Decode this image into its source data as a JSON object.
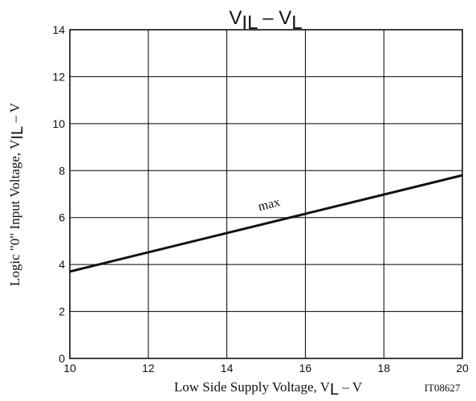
{
  "chart_data": {
    "type": "line",
    "title": {
      "main": "V",
      "sub1": "IL",
      "mid": " – V",
      "sub2": "L"
    },
    "xlabel": {
      "main": "Low Side Supply Voltage, V",
      "sub": "L",
      "tail": " – V"
    },
    "ylabel": {
      "main": "Logic \"0\" Input Voltage, V",
      "sub": "IL",
      "tail": " – V"
    },
    "xlim": [
      10,
      20
    ],
    "ylim": [
      0,
      14
    ],
    "x_ticks": [
      10,
      12,
      14,
      16,
      18,
      20
    ],
    "y_ticks": [
      0,
      2,
      4,
      6,
      8,
      10,
      12,
      14
    ],
    "grid": true,
    "series": [
      {
        "name": "max",
        "x": [
          10,
          20
        ],
        "y": [
          3.7,
          7.8
        ]
      }
    ],
    "annotations": [
      {
        "text": "max",
        "x": 15.1,
        "y": 6.4
      }
    ]
  },
  "figure_id": "IT08627"
}
